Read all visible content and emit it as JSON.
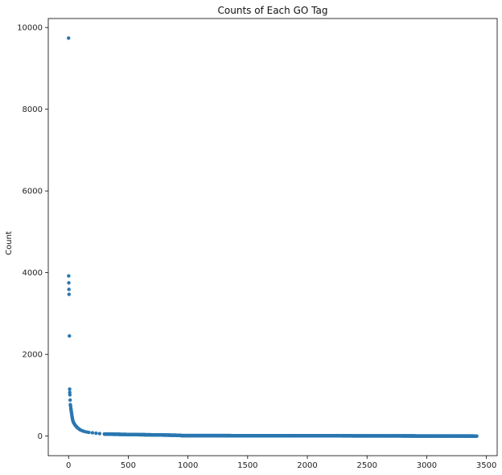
{
  "chart_data": {
    "type": "scatter",
    "title": "Counts of Each GO Tag",
    "xlabel": "",
    "ylabel": "Count",
    "xlim": [
      -170,
      3590
    ],
    "ylim": [
      -480,
      10220
    ],
    "x_ticks": [
      0,
      500,
      1000,
      1500,
      2000,
      2500,
      3000,
      3500
    ],
    "y_ticks": [
      0,
      2000,
      4000,
      6000,
      8000,
      10000
    ],
    "grid": false,
    "legend": "none",
    "marker_color": "#2a77b0",
    "n_points": 3420,
    "head_points": [
      [
        0,
        9740
      ],
      [
        1,
        3920
      ],
      [
        2,
        3750
      ],
      [
        3,
        3590
      ],
      [
        4,
        3470
      ],
      [
        7,
        2450
      ],
      [
        9,
        1150
      ],
      [
        10,
        1070
      ],
      [
        11,
        1010
      ],
      [
        13,
        880
      ],
      [
        15,
        770
      ],
      [
        17,
        730
      ],
      [
        19,
        680
      ],
      [
        21,
        640
      ],
      [
        23,
        600
      ],
      [
        25,
        560
      ],
      [
        27,
        520
      ],
      [
        29,
        480
      ],
      [
        31,
        450
      ],
      [
        33,
        420
      ],
      [
        35,
        390
      ],
      [
        38,
        360
      ],
      [
        42,
        330
      ],
      [
        46,
        310
      ],
      [
        50,
        290
      ],
      [
        55,
        270
      ],
      [
        60,
        250
      ],
      [
        66,
        230
      ],
      [
        72,
        210
      ],
      [
        80,
        190
      ],
      [
        90,
        170
      ],
      [
        100,
        150
      ],
      [
        115,
        130
      ],
      [
        130,
        115
      ],
      [
        150,
        100
      ],
      [
        170,
        90
      ],
      [
        200,
        80
      ],
      [
        230,
        70
      ],
      [
        260,
        60
      ],
      [
        300,
        50
      ]
    ],
    "tail_levels": [
      {
        "x_from": 301,
        "x_to": 940,
        "y_from": 48,
        "y_to": 18
      },
      {
        "x_from": 941,
        "x_to": 3419,
        "y_from": 12,
        "y_to": 0
      }
    ]
  }
}
